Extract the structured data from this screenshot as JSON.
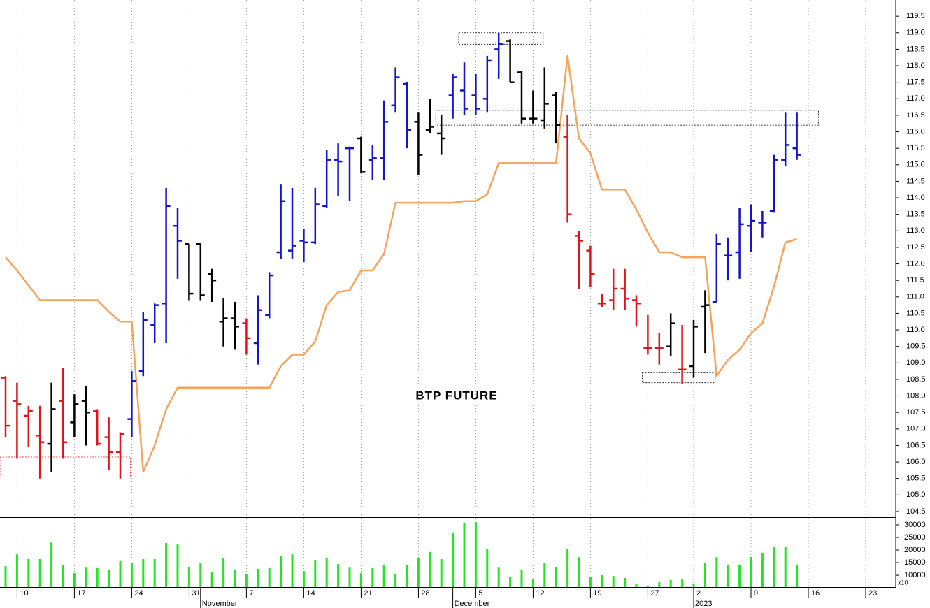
{
  "chart_data": {
    "type": "ohlc",
    "title": "BTP FUTURE",
    "grid": true,
    "categories": [
      null,
      "10",
      null,
      null,
      null,
      null,
      "17",
      null,
      null,
      null,
      null,
      "24",
      null,
      null,
      null,
      null,
      "31",
      null,
      null,
      null,
      null,
      "7",
      null,
      null,
      null,
      null,
      "14",
      null,
      null,
      null,
      null,
      "21",
      null,
      null,
      null,
      null,
      "28",
      null,
      null,
      null,
      null,
      "5",
      null,
      null,
      null,
      null,
      "12",
      null,
      null,
      null,
      null,
      "19",
      null,
      null,
      null,
      null,
      "27",
      null,
      null,
      null,
      "2",
      null,
      null,
      null,
      null,
      "9",
      null,
      null,
      null,
      null,
      "16",
      null,
      null,
      null,
      null,
      "23",
      null,
      null
    ],
    "month_labels": [
      null,
      null,
      null,
      null,
      null,
      null,
      null,
      null,
      null,
      null,
      null,
      null,
      null,
      null,
      null,
      null,
      null,
      "November",
      null,
      null,
      null,
      null,
      null,
      null,
      null,
      null,
      null,
      null,
      null,
      null,
      null,
      null,
      null,
      null,
      null,
      null,
      null,
      null,
      null,
      "December",
      null,
      null,
      null,
      null,
      null,
      null,
      null,
      null,
      null,
      null,
      null,
      null,
      null,
      null,
      null,
      null,
      null,
      null,
      null,
      null,
      "2023",
      null,
      null,
      null,
      null,
      null,
      null,
      null,
      null,
      null,
      null,
      null,
      null,
      null,
      null,
      null,
      null,
      null
    ],
    "open": [
      108.55,
      107.85,
      107.4,
      106.8,
      106.55,
      107.85,
      107.2,
      107.85,
      107.55,
      106.75,
      106.3,
      107.3,
      108.75,
      110.15,
      110.8,
      113.15,
      112.6,
      112.6,
      111.7,
      110.25,
      110.35,
      110.2,
      109.6,
      110.45,
      112.35,
      112.4,
      112.7,
      112.65,
      113.75,
      115.15,
      115.5,
      115.8,
      115.15,
      115.2,
      116.8,
      117.45,
      116.3,
      116.05,
      115.95,
      117.1,
      117.25,
      117.1,
      117.0,
      118.5,
      118.75,
      117.8,
      116.4,
      116.35,
      117.1,
      115.85,
      112.85,
      112.4,
      110.8,
      110.9,
      111.25,
      110.9,
      109.45,
      109.45,
      109.5,
      108.8,
      108.9,
      110.7,
      110.85,
      112.25,
      112.35,
      113.15,
      113.25,
      113.6,
      115.15,
      115.5,
      null,
      null,
      null,
      null,
      null,
      null,
      null,
      null
    ],
    "high": [
      108.6,
      108.4,
      107.7,
      107.7,
      108.4,
      108.85,
      108.05,
      108.3,
      107.6,
      107.35,
      106.9,
      108.75,
      110.55,
      110.8,
      114.3,
      113.7,
      112.6,
      112.6,
      111.85,
      110.95,
      110.85,
      110.35,
      111.05,
      111.75,
      114.4,
      114.3,
      113.05,
      114.3,
      115.45,
      115.65,
      115.55,
      115.85,
      115.6,
      116.95,
      117.95,
      117.5,
      116.6,
      117.0,
      116.5,
      117.75,
      118.1,
      117.75,
      118.3,
      119.0,
      118.8,
      117.85,
      117.25,
      117.95,
      117.2,
      116.5,
      113.0,
      112.55,
      111.1,
      111.85,
      111.85,
      111.05,
      110.45,
      109.9,
      110.5,
      110.15,
      110.3,
      111.2,
      112.9,
      112.8,
      113.7,
      113.8,
      113.6,
      115.3,
      116.6,
      116.6,
      null,
      null,
      null,
      null,
      null,
      null,
      null,
      null
    ],
    "low": [
      106.75,
      106.1,
      106.45,
      105.5,
      105.7,
      106.1,
      106.75,
      106.5,
      106.5,
      105.75,
      105.5,
      106.75,
      108.6,
      109.6,
      109.6,
      111.55,
      110.9,
      110.9,
      110.85,
      109.5,
      109.4,
      109.25,
      108.95,
      110.35,
      112.15,
      112.15,
      112.05,
      112.6,
      113.7,
      114.05,
      113.9,
      114.75,
      114.55,
      114.55,
      116.6,
      115.5,
      114.7,
      115.95,
      115.3,
      116.4,
      116.5,
      116.5,
      116.6,
      117.6,
      117.5,
      116.25,
      116.25,
      116.1,
      115.65,
      113.25,
      111.25,
      111.3,
      110.7,
      110.6,
      110.6,
      110.1,
      109.25,
      108.95,
      109.2,
      108.35,
      108.55,
      109.3,
      110.85,
      111.5,
      111.55,
      112.35,
      112.8,
      113.55,
      114.95,
      115.15,
      null,
      null,
      null,
      null,
      null,
      null,
      null,
      null
    ],
    "close": [
      107.1,
      107.75,
      107.55,
      106.6,
      107.6,
      106.6,
      107.75,
      107.5,
      106.55,
      106.3,
      106.85,
      108.45,
      110.3,
      110.75,
      113.75,
      112.7,
      111.1,
      111.05,
      111.5,
      110.35,
      110.1,
      109.75,
      110.6,
      111.65,
      113.9,
      112.55,
      112.65,
      113.8,
      115.15,
      115.1,
      115.5,
      114.8,
      115.2,
      116.3,
      117.65,
      116.05,
      115.3,
      116.15,
      115.8,
      117.65,
      116.7,
      116.7,
      118.15,
      118.65,
      117.5,
      116.4,
      116.4,
      116.85,
      116.2,
      113.5,
      112.7,
      111.7,
      110.8,
      111.25,
      110.95,
      110.8,
      109.45,
      109.45,
      110.2,
      108.8,
      110.1,
      110.75,
      112.6,
      112.25,
      113.2,
      113.3,
      113.25,
      115.15,
      115.6,
      115.3,
      null,
      null,
      null,
      null,
      null,
      null,
      null,
      null
    ],
    "bar_colors": [
      "#e0141a",
      "#e0141a",
      "#e0141a",
      "#e0141a",
      "#000000",
      "#e0141a",
      "#000000",
      "#000000",
      "#e0141a",
      "#e0141a",
      "#e0141a",
      "#1414c8",
      "#1414c8",
      "#1414c8",
      "#1414c8",
      "#1414c8",
      "#000000",
      "#000000",
      "#000000",
      "#000000",
      "#000000",
      "#e0141a",
      "#1414c8",
      "#1414c8",
      "#1414c8",
      "#1414c8",
      "#1414c8",
      "#1414c8",
      "#1414c8",
      "#1414c8",
      "#1414c8",
      "#000000",
      "#1414c8",
      "#1414c8",
      "#1414c8",
      "#1414c8",
      "#000000",
      "#000000",
      "#000000",
      "#1414c8",
      "#1414c8",
      "#1414c8",
      "#1414c8",
      "#1414c8",
      "#000000",
      "#000000",
      "#000000",
      "#000000",
      "#000000",
      "#e0141a",
      "#e0141a",
      "#e0141a",
      "#e0141a",
      "#e0141a",
      "#e0141a",
      "#e0141a",
      "#e0141a",
      "#e0141a",
      "#000000",
      "#e0141a",
      "#000000",
      "#000000",
      "#1414c8",
      "#1414c8",
      "#1414c8",
      "#1414c8",
      "#1414c8",
      "#1414c8",
      "#1414c8",
      "#1414c8",
      null,
      null,
      null,
      null,
      null,
      null,
      null,
      null
    ],
    "line": {
      "color": "#f5a35a",
      "values": [
        112.2,
        111.8,
        111.35,
        110.9,
        110.9,
        110.9,
        110.9,
        110.9,
        110.9,
        110.55,
        110.25,
        110.25,
        105.7,
        106.5,
        107.6,
        108.25,
        108.25,
        108.25,
        108.25,
        108.25,
        108.25,
        108.25,
        108.25,
        108.25,
        108.9,
        109.25,
        109.25,
        109.65,
        110.75,
        111.15,
        111.2,
        111.8,
        111.8,
        112.3,
        113.85,
        113.85,
        113.85,
        113.85,
        113.85,
        113.85,
        113.9,
        113.9,
        114.1,
        115.05,
        115.05,
        115.05,
        115.05,
        115.05,
        115.05,
        118.3,
        115.8,
        115.35,
        114.25,
        114.25,
        114.25,
        113.65,
        112.95,
        112.35,
        112.35,
        112.2,
        112.2,
        112.2,
        108.6,
        109.1,
        109.4,
        109.9,
        110.2,
        111.3,
        112.65,
        112.75,
        null,
        null,
        null,
        null,
        null,
        null,
        null,
        null
      ]
    },
    "zones": [
      {
        "x": [
          0,
          11
        ],
        "y": [
          105.55,
          106.15
        ],
        "color": "#e0141a"
      },
      {
        "x": [
          40,
          47
        ],
        "y": [
          118.65,
          119.0
        ],
        "color": "#000000"
      },
      {
        "x": [
          38,
          71
        ],
        "y": [
          116.2,
          116.65
        ],
        "color": "#000000"
      },
      {
        "x": [
          56,
          62
        ],
        "y": [
          108.4,
          108.7
        ],
        "color": "#000000"
      }
    ],
    "ylim": [
      104.33,
      119.99
    ],
    "yticks": [
      104.5,
      {
        "value": 105,
        "label": "105.0"
      },
      105.5,
      {
        "value": 106,
        "label": "106.0"
      },
      106.5,
      {
        "value": 107,
        "label": "107.0"
      },
      107.5,
      {
        "value": 108,
        "label": "108.0"
      },
      108.5,
      {
        "value": 109,
        "label": "109.0"
      },
      109.5,
      {
        "value": 110,
        "label": "110.0"
      },
      110.5,
      {
        "value": 111,
        "label": "111.0"
      },
      111.5,
      {
        "value": 112,
        "label": "112.0"
      },
      112.5,
      {
        "value": 113,
        "label": "113.0"
      },
      113.5,
      {
        "value": 114,
        "label": "114.0"
      },
      114.5,
      {
        "value": 115,
        "label": "115.0"
      },
      115.5,
      {
        "value": 116,
        "label": "116.0"
      },
      116.5,
      {
        "value": 117,
        "label": "117.0"
      },
      117.5,
      {
        "value": 118,
        "label": "118.0"
      },
      118.5,
      {
        "value": 119,
        "label": "119.0"
      },
      119.5
    ],
    "volume": {
      "color": "#22e622",
      "ylim": [
        5300,
        32500
      ],
      "yticks": [
        10000,
        15000,
        20000,
        25000,
        30000
      ],
      "multiplier_label": "x10",
      "values": [
        13600,
        18300,
        16400,
        16400,
        23000,
        13900,
        10800,
        13000,
        12800,
        12200,
        15600,
        15000,
        16400,
        16400,
        22800,
        22200,
        13300,
        14700,
        11400,
        16900,
        12200,
        10300,
        12500,
        12800,
        17800,
        18300,
        11700,
        16100,
        16900,
        14400,
        13000,
        10800,
        12800,
        14200,
        10600,
        14200,
        16700,
        19200,
        16400,
        26900,
        30800,
        31100,
        20300,
        13000,
        9400,
        12200,
        8600,
        15000,
        13300,
        20300,
        17200,
        9400,
        10000,
        9700,
        8900,
        6700,
        5800,
        7200,
        8100,
        8300,
        6400,
        15000,
        17200,
        14200,
        14200,
        17200,
        18900,
        21100,
        21400,
        14200,
        null,
        null,
        null,
        null,
        null,
        null,
        null,
        null
      ]
    }
  }
}
